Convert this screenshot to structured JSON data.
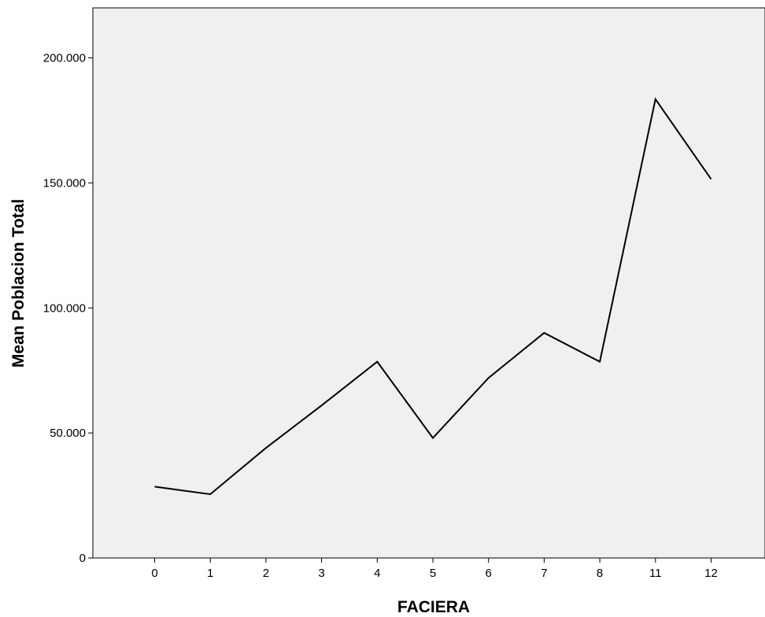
{
  "chart_data": {
    "type": "line",
    "title": "",
    "xlabel": "FACIERA",
    "ylabel": "Mean Poblacion Total",
    "categories": [
      "0",
      "1",
      "2",
      "3",
      "4",
      "5",
      "6",
      "7",
      "8",
      "11",
      "12"
    ],
    "series": [
      {
        "values": [
          28500,
          25500,
          44000,
          61000,
          78500,
          48000,
          72000,
          90000,
          78500,
          183500,
          151500
        ]
      }
    ],
    "ylim": [
      0,
      220000
    ],
    "yticks": [
      {
        "value": 0,
        "label": "0"
      },
      {
        "value": 50000,
        "label": "50.000"
      },
      {
        "value": 100000,
        "label": "100.000"
      },
      {
        "value": 150000,
        "label": "150.000"
      },
      {
        "value": 200000,
        "label": "200.000"
      }
    ],
    "grid": false,
    "legend": "none",
    "colors": {
      "plot_background": "#f0f0f0",
      "line": "#000000"
    }
  }
}
